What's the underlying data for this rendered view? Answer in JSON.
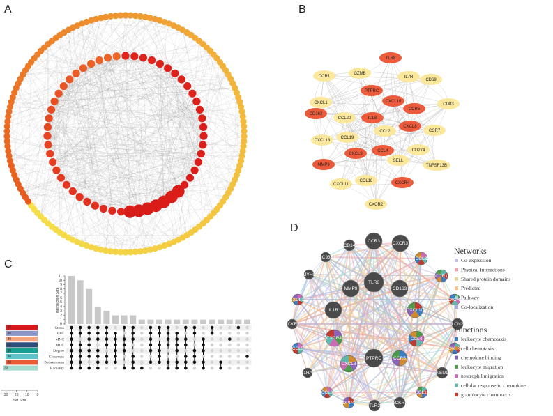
{
  "panels": {
    "A": "A",
    "B": "B",
    "C": "C",
    "D": "D"
  },
  "panel_b": {
    "nodes": [
      {
        "label": "TLR8",
        "hub": true
      },
      {
        "label": "CCR1",
        "hub": false
      },
      {
        "label": "GZMB",
        "hub": false
      },
      {
        "label": "IL7R",
        "hub": false
      },
      {
        "label": "CD69",
        "hub": false
      },
      {
        "label": "PTPRC",
        "hub": true
      },
      {
        "label": "CXCL1",
        "hub": false
      },
      {
        "label": "CXCL10",
        "hub": true
      },
      {
        "label": "CCR5",
        "hub": true
      },
      {
        "label": "CD83",
        "hub": false
      },
      {
        "label": "CD163",
        "hub": true
      },
      {
        "label": "IL1B",
        "hub": true
      },
      {
        "label": "CCL20",
        "hub": false
      },
      {
        "label": "CXCL8",
        "hub": true
      },
      {
        "label": "CCL2",
        "hub": false
      },
      {
        "label": "CCR7",
        "hub": false
      },
      {
        "label": "CXCL13",
        "hub": false
      },
      {
        "label": "CCL19",
        "hub": false
      },
      {
        "label": "CXCL9",
        "hub": true
      },
      {
        "label": "CCL4",
        "hub": true
      },
      {
        "label": "CD274",
        "hub": false
      },
      {
        "label": "MMP9",
        "hub": true
      },
      {
        "label": "SELL",
        "hub": false
      },
      {
        "label": "TNFSF13B",
        "hub": false
      },
      {
        "label": "CXCL11",
        "hub": false
      },
      {
        "label": "CCL18",
        "hub": false
      },
      {
        "label": "CXCR4",
        "hub": true
      },
      {
        "label": "CXCR2",
        "hub": false
      }
    ]
  },
  "panel_c": {
    "intersection_axis_label": "Intersection Size",
    "intersection_ticks": [
      "0",
      "1",
      "2",
      "3",
      "4",
      "5",
      "6",
      "7",
      "8",
      "9",
      "10",
      "11"
    ],
    "intersection_values": [
      11,
      10,
      8,
      4,
      3,
      2,
      2,
      2,
      1,
      1,
      1,
      1,
      1,
      1,
      1,
      1,
      1,
      1,
      1,
      1,
      1
    ],
    "set_size_label": "Set Size",
    "set_size_ticks": [
      "30",
      "20",
      "10",
      "0"
    ],
    "sets": [
      {
        "name": "Stress",
        "size": "30",
        "color": "#d7191c"
      },
      {
        "name": "EPC",
        "size": "30",
        "color": "#8c96c6"
      },
      {
        "name": "MNC",
        "size": "30",
        "color": "#f4a582"
      },
      {
        "name": "MCC",
        "size": "30",
        "color": "#2c4f7c"
      },
      {
        "name": "Degree",
        "size": "30",
        "color": "#1a9e8f"
      },
      {
        "name": "Closeness",
        "size": "30",
        "color": "#5ec4c9"
      },
      {
        "name": "Betweenness",
        "size": "30",
        "color": "#e85a3a"
      },
      {
        "name": "Radiality",
        "size": "33",
        "color": "#a6dcd0"
      }
    ]
  },
  "panel_d": {
    "nodes": [
      {
        "label": "CCR3",
        "r": 12,
        "pie": false
      },
      {
        "label": "CXCR3",
        "r": 12,
        "pie": false
      },
      {
        "label": "CD14",
        "r": 8,
        "pie": false
      },
      {
        "label": "UNC93B1",
        "r": 7,
        "pie": false
      },
      {
        "label": "CCL3",
        "r": 9,
        "pie": true
      },
      {
        "label": "CCR1",
        "r": 9,
        "pie": true
      },
      {
        "label": "MYH9",
        "r": 7,
        "pie": false
      },
      {
        "label": "TLR8",
        "r": 14,
        "pie": false
      },
      {
        "label": "MMP9",
        "r": 12,
        "pie": false
      },
      {
        "label": "CD163",
        "r": 12,
        "pie": false
      },
      {
        "label": "CXCR1",
        "r": 8,
        "pie": true
      },
      {
        "label": "CXCL11",
        "r": 8,
        "pie": true
      },
      {
        "label": "IL1B",
        "r": 12,
        "pie": false
      },
      {
        "label": "CXCL10",
        "r": 11,
        "pie": true
      },
      {
        "label": "ACKR2",
        "r": 7,
        "pie": false
      },
      {
        "label": "LCN2",
        "r": 8,
        "pie": false
      },
      {
        "label": "CXCR4",
        "r": 12,
        "pie": true
      },
      {
        "label": "CCL4",
        "r": 11,
        "pie": true
      },
      {
        "label": "CCL5",
        "r": 8,
        "pie": true
      },
      {
        "label": "CXCR2",
        "r": 8,
        "pie": true
      },
      {
        "label": "PTPRC",
        "r": 13,
        "pie": false
      },
      {
        "label": "CCR5",
        "r": 11,
        "pie": true
      },
      {
        "label": "CXCL8",
        "r": 12,
        "pie": true
      },
      {
        "label": "IL1RAP",
        "r": 7,
        "pie": false
      },
      {
        "label": "NEU1",
        "r": 8,
        "pie": false
      },
      {
        "label": "CCL8",
        "r": 8,
        "pie": true
      },
      {
        "label": "CCL11",
        "r": 8,
        "pie": true
      },
      {
        "label": "DPP4",
        "r": 8,
        "pie": true
      },
      {
        "label": "TLR2",
        "r": 8,
        "pie": false
      },
      {
        "label": "ACKR1",
        "r": 8,
        "pie": false
      }
    ],
    "networks_title": "Networks",
    "networks": [
      {
        "label": "Co-expression",
        "color": "#c7c2e8"
      },
      {
        "label": "Physical Interactions",
        "color": "#eea3a8"
      },
      {
        "label": "Shared protein domains",
        "color": "#e7d39a"
      },
      {
        "label": "Predicted",
        "color": "#f6c08c"
      },
      {
        "label": "Pathway",
        "color": "#9ed8d3"
      },
      {
        "label": "Co-localization",
        "color": "#9fb0e0"
      }
    ],
    "functions_title": "Functions",
    "functions": [
      {
        "label": "leukocyte chemotaxis",
        "color": "#3b7bbf"
      },
      {
        "label": "cell chemotaxis",
        "color": "#d18a2c"
      },
      {
        "label": "chemokine binding",
        "color": "#8a62b8"
      },
      {
        "label": "leukocyte migration",
        "color": "#4f9a4a"
      },
      {
        "label": "neutrophil migration",
        "color": "#c96bb5"
      },
      {
        "label": "cellular response to chemokine",
        "color": "#5fb8ae"
      },
      {
        "label": "granulocyte chemotaxis",
        "color": "#c23b32"
      }
    ]
  },
  "colors": {
    "hub_red": "#ec5b3c",
    "pale_yellow": "#fbe89c",
    "node_dark": "#4a4a4a",
    "edge_gray": "#bdbdbd",
    "bar_gray": "#c8c8c8"
  }
}
